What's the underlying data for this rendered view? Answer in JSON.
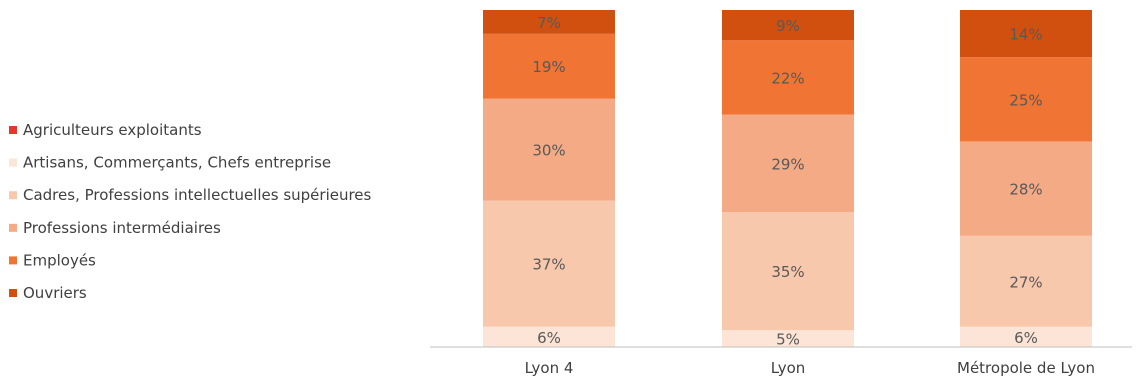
{
  "chart_data": {
    "type": "bar",
    "stacked": true,
    "title": "",
    "xlabel": "",
    "ylabel": "",
    "ylim": [
      0,
      100
    ],
    "grid": false,
    "legend_position": "left",
    "categories": [
      "Lyon 4",
      "Lyon",
      "Métropole de Lyon"
    ],
    "series": [
      {
        "name": "Agriculteurs exploitants",
        "color": "#e03a2f",
        "values": [
          0,
          0,
          0
        ],
        "labels": [
          "",
          "",
          ""
        ]
      },
      {
        "name": "Artisans, Commerçants, Chefs entreprise",
        "color": "#fce4d6",
        "values": [
          6,
          5,
          6
        ],
        "labels": [
          "6%",
          "5%",
          "6%"
        ]
      },
      {
        "name": "Cadres, Professions intellectuelles supérieures",
        "color": "#f8c8ad",
        "values": [
          37,
          35,
          27
        ],
        "labels": [
          "37%",
          "35%",
          "27%"
        ]
      },
      {
        "name": "Professions intermédiaires",
        "color": "#f4aa84",
        "values": [
          30,
          29,
          28
        ],
        "labels": [
          "30%",
          "29%",
          "28%"
        ]
      },
      {
        "name": "Employés",
        "color": "#f07434",
        "values": [
          19,
          22,
          25
        ],
        "labels": [
          "19%",
          "22%",
          "25%"
        ]
      },
      {
        "name": "Ouvriers",
        "color": "#d2500f",
        "values": [
          7,
          9,
          14
        ],
        "labels": [
          "7%",
          "9%",
          "14%"
        ]
      }
    ]
  }
}
